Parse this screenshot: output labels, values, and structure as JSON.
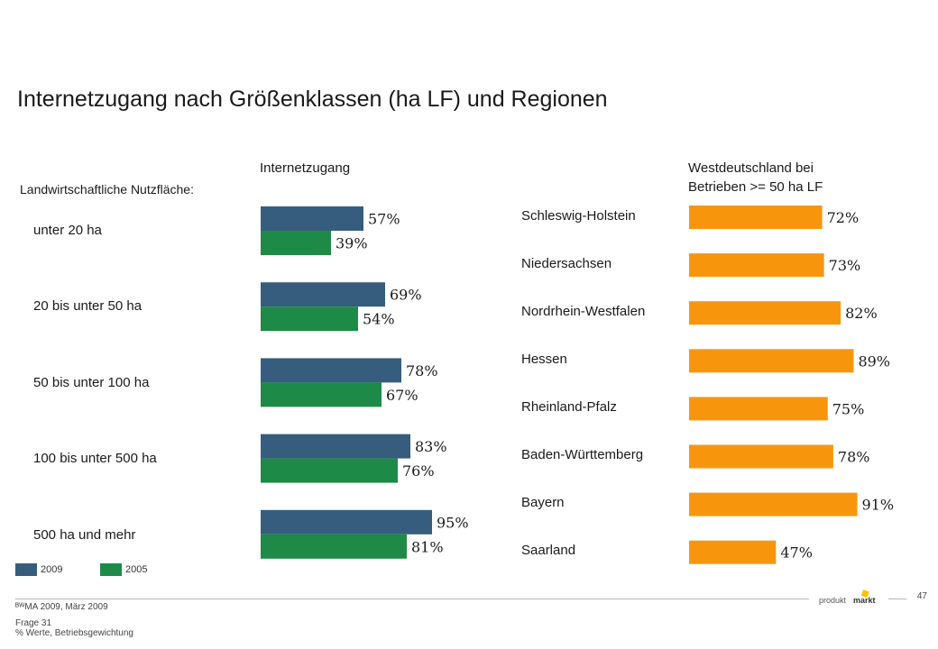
{
  "page": {
    "title": "Internetzugang nach Größenklassen (ha LF) und Regionen",
    "page_number": "47"
  },
  "chart_data": [
    {
      "type": "bar",
      "orientation": "horizontal",
      "title": "Internetzugang",
      "axis_title": "Landwirtschaftliche Nutzfläche:",
      "categories": [
        "unter 20 ha",
        "20 bis unter 50 ha",
        "50 bis unter 100 ha",
        "100 bis unter 500 ha",
        "500 ha und mehr"
      ],
      "series": [
        {
          "name": "2009",
          "color": "#365d7d",
          "values": [
            57,
            69,
            78,
            83,
            95
          ],
          "labels": [
            "57%",
            "69%",
            "78%",
            "83%",
            "95%"
          ]
        },
        {
          "name": "2005",
          "color": "#1e8a48",
          "values": [
            39,
            54,
            67,
            76,
            81
          ],
          "labels": [
            "39%",
            "54%",
            "67%",
            "76%",
            "81%"
          ]
        }
      ],
      "xlim": [
        0,
        100
      ],
      "grid": false,
      "legend": "bottom-left"
    },
    {
      "type": "bar",
      "orientation": "horizontal",
      "title_lines": [
        "Westdeutschland bei",
        "Betrieben >= 50 ha LF"
      ],
      "categories": [
        "Schleswig-Holstein",
        "Niedersachsen",
        "Nordrhein-Westfalen",
        "Hessen",
        "Rheinland-Pfalz",
        "Baden-Württemberg",
        "Bayern",
        "Saarland"
      ],
      "series": [
        {
          "color": "#f7960d",
          "values": [
            72,
            73,
            82,
            89,
            75,
            78,
            91,
            47
          ],
          "labels": [
            "72%",
            "73%",
            "82%",
            "89%",
            "75%",
            "78%",
            "91%",
            "47%"
          ]
        }
      ],
      "xlim": [
        0,
        100
      ],
      "grid": false
    }
  ],
  "footer": {
    "source": "ᴮᵂMA 2009, März 2009",
    "question": "Frage 31",
    "note": "% Werte, Betriebsgewichtung"
  },
  "logo": {
    "word1": "produkt",
    "word2": "markt"
  }
}
